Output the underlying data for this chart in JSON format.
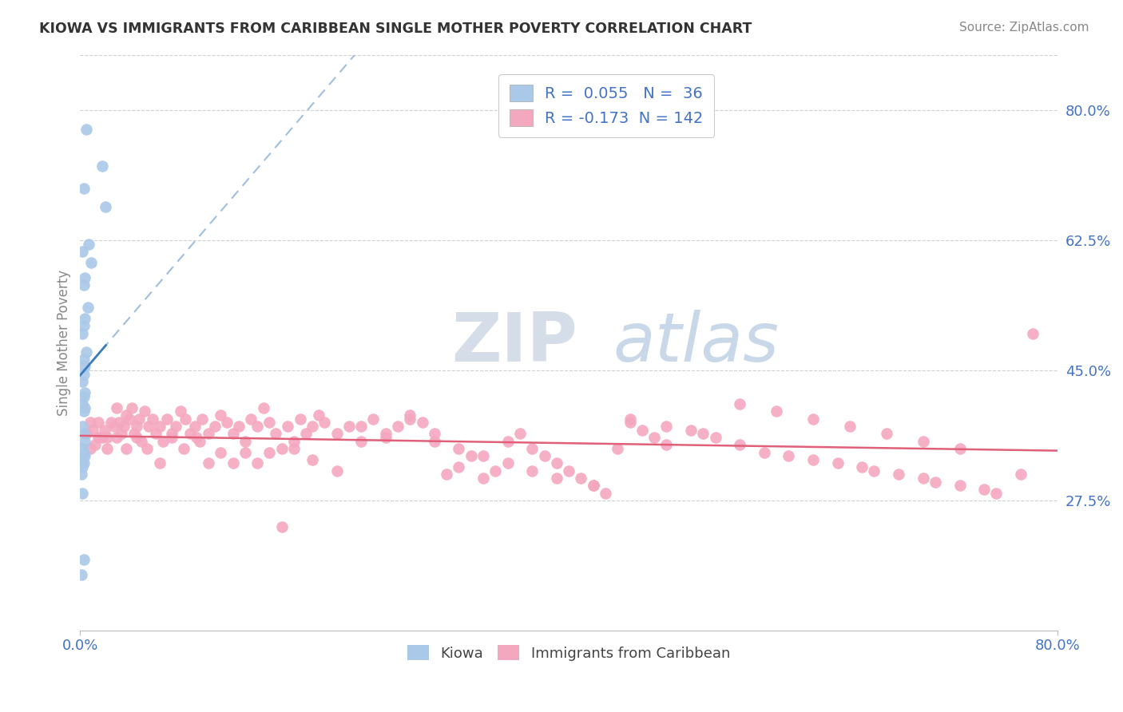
{
  "title": "KIOWA VS IMMIGRANTS FROM CARIBBEAN SINGLE MOTHER POVERTY CORRELATION CHART",
  "source": "Source: ZipAtlas.com",
  "ylabel": "Single Mother Poverty",
  "xmin": 0.0,
  "xmax": 0.8,
  "ymin": 0.1,
  "ymax": 0.875,
  "yticks": [
    0.275,
    0.45,
    0.625,
    0.8
  ],
  "ytick_labels": [
    "27.5%",
    "45.0%",
    "62.5%",
    "80.0%"
  ],
  "kiowa_R": 0.055,
  "kiowa_N": 36,
  "carib_R": -0.173,
  "carib_N": 142,
  "kiowa_dot_color": "#aac8e8",
  "carib_dot_color": "#f4a8c0",
  "kiowa_line_color": "#3a7abf",
  "kiowa_dash_color": "#a0bedd",
  "carib_line_color": "#e0607a",
  "legend_text_color": "#4472c4",
  "title_color": "#333333",
  "axis_color": "#4472c4",
  "grid_color": "#d0d0d0",
  "background_color": "#ffffff",
  "watermark_zip": "ZIP",
  "watermark_atlas": "atlas",
  "kiowa_x": [
    0.005,
    0.018,
    0.003,
    0.021,
    0.007,
    0.002,
    0.009,
    0.004,
    0.003,
    0.006,
    0.004,
    0.003,
    0.002,
    0.005,
    0.003,
    0.004,
    0.003,
    0.002,
    0.004,
    0.003,
    0.002,
    0.004,
    0.003,
    0.002,
    0.003,
    0.004,
    0.002,
    0.003,
    0.004,
    0.002,
    0.003,
    0.002,
    0.001,
    0.002,
    0.001,
    0.003
  ],
  "kiowa_y": [
    0.775,
    0.725,
    0.695,
    0.67,
    0.62,
    0.61,
    0.595,
    0.575,
    0.565,
    0.535,
    0.52,
    0.51,
    0.5,
    0.475,
    0.465,
    0.455,
    0.445,
    0.435,
    0.42,
    0.415,
    0.405,
    0.4,
    0.395,
    0.375,
    0.365,
    0.355,
    0.345,
    0.34,
    0.335,
    0.33,
    0.325,
    0.32,
    0.31,
    0.285,
    0.175,
    0.195
  ],
  "carib_x": [
    0.005,
    0.008,
    0.01,
    0.012,
    0.015,
    0.018,
    0.02,
    0.022,
    0.025,
    0.028,
    0.03,
    0.032,
    0.034,
    0.036,
    0.038,
    0.04,
    0.042,
    0.044,
    0.046,
    0.048,
    0.05,
    0.053,
    0.056,
    0.059,
    0.062,
    0.065,
    0.068,
    0.071,
    0.075,
    0.078,
    0.082,
    0.086,
    0.09,
    0.094,
    0.098,
    0.1,
    0.105,
    0.11,
    0.115,
    0.12,
    0.125,
    0.13,
    0.135,
    0.14,
    0.145,
    0.15,
    0.155,
    0.16,
    0.165,
    0.17,
    0.175,
    0.18,
    0.185,
    0.19,
    0.195,
    0.2,
    0.21,
    0.22,
    0.23,
    0.24,
    0.25,
    0.26,
    0.27,
    0.28,
    0.29,
    0.3,
    0.31,
    0.32,
    0.33,
    0.34,
    0.35,
    0.36,
    0.37,
    0.38,
    0.39,
    0.4,
    0.41,
    0.42,
    0.43,
    0.44,
    0.45,
    0.46,
    0.47,
    0.48,
    0.5,
    0.52,
    0.54,
    0.56,
    0.58,
    0.6,
    0.62,
    0.64,
    0.65,
    0.67,
    0.69,
    0.7,
    0.72,
    0.74,
    0.75,
    0.77,
    0.78,
    0.008,
    0.015,
    0.022,
    0.03,
    0.038,
    0.046,
    0.055,
    0.065,
    0.075,
    0.085,
    0.095,
    0.105,
    0.115,
    0.125,
    0.135,
    0.145,
    0.155,
    0.165,
    0.175,
    0.19,
    0.21,
    0.23,
    0.25,
    0.27,
    0.29,
    0.31,
    0.33,
    0.35,
    0.37,
    0.39,
    0.42,
    0.45,
    0.48,
    0.51,
    0.54,
    0.57,
    0.6,
    0.63,
    0.66,
    0.69,
    0.72
  ],
  "carib_y": [
    0.365,
    0.38,
    0.37,
    0.35,
    0.38,
    0.36,
    0.37,
    0.36,
    0.38,
    0.375,
    0.4,
    0.38,
    0.365,
    0.375,
    0.39,
    0.385,
    0.4,
    0.365,
    0.375,
    0.385,
    0.355,
    0.395,
    0.375,
    0.385,
    0.365,
    0.375,
    0.355,
    0.385,
    0.365,
    0.375,
    0.395,
    0.385,
    0.365,
    0.375,
    0.355,
    0.385,
    0.365,
    0.375,
    0.39,
    0.38,
    0.365,
    0.375,
    0.355,
    0.385,
    0.375,
    0.4,
    0.38,
    0.365,
    0.345,
    0.375,
    0.355,
    0.385,
    0.365,
    0.375,
    0.39,
    0.38,
    0.365,
    0.375,
    0.355,
    0.385,
    0.365,
    0.375,
    0.39,
    0.38,
    0.365,
    0.31,
    0.32,
    0.335,
    0.305,
    0.315,
    0.355,
    0.365,
    0.345,
    0.335,
    0.325,
    0.315,
    0.305,
    0.295,
    0.285,
    0.345,
    0.38,
    0.37,
    0.36,
    0.35,
    0.37,
    0.36,
    0.35,
    0.34,
    0.335,
    0.33,
    0.325,
    0.32,
    0.315,
    0.31,
    0.305,
    0.3,
    0.295,
    0.29,
    0.285,
    0.31,
    0.5,
    0.345,
    0.36,
    0.345,
    0.36,
    0.345,
    0.36,
    0.345,
    0.325,
    0.36,
    0.345,
    0.36,
    0.325,
    0.34,
    0.325,
    0.34,
    0.325,
    0.34,
    0.24,
    0.345,
    0.33,
    0.315,
    0.375,
    0.36,
    0.385,
    0.355,
    0.345,
    0.335,
    0.325,
    0.315,
    0.305,
    0.295,
    0.385,
    0.375,
    0.365,
    0.405,
    0.395,
    0.385,
    0.375,
    0.365,
    0.355,
    0.345
  ]
}
